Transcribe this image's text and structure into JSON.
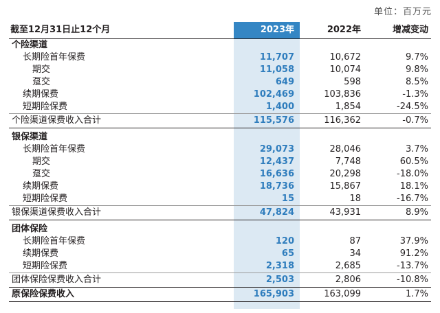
{
  "unit_label": "单位：百万元",
  "header": {
    "label": "截至12月31日止12个月",
    "y2023": "2023年",
    "y2022": "2022年",
    "change": "增减变动"
  },
  "rows": [
    {
      "type": "section",
      "label": "个险渠道"
    },
    {
      "type": "item",
      "label": "长期险首年保费",
      "v2023": "11,707",
      "v2022": "10,672",
      "change": "9.7%"
    },
    {
      "type": "sub",
      "label": "期交",
      "v2023": "11,058",
      "v2022": "10,074",
      "change": "9.8%"
    },
    {
      "type": "sub",
      "label": "趸交",
      "v2023": "649",
      "v2022": "598",
      "change": "8.5%"
    },
    {
      "type": "item",
      "label": "续期保费",
      "v2023": "102,469",
      "v2022": "103,836",
      "change": "-1.3%"
    },
    {
      "type": "item",
      "label": "短期险保费",
      "v2023": "1,400",
      "v2022": "1,854",
      "change": "-24.5%"
    },
    {
      "type": "total",
      "label": "个险渠道保费收入合计",
      "v2023": "115,576",
      "v2022": "116,362",
      "change": "-0.7%"
    },
    {
      "type": "section",
      "label": "银保渠道"
    },
    {
      "type": "item",
      "label": "长期险首年保费",
      "v2023": "29,073",
      "v2022": "28,046",
      "change": "3.7%"
    },
    {
      "type": "sub",
      "label": "期交",
      "v2023": "12,437",
      "v2022": "7,748",
      "change": "60.5%"
    },
    {
      "type": "sub",
      "label": "趸交",
      "v2023": "16,636",
      "v2022": "20,298",
      "change": "-18.0%"
    },
    {
      "type": "item",
      "label": "续期保费",
      "v2023": "18,736",
      "v2022": "15,867",
      "change": "18.1%"
    },
    {
      "type": "item",
      "label": "短期险保费",
      "v2023": "15",
      "v2022": "18",
      "change": "-16.7%"
    },
    {
      "type": "total",
      "label": "银保渠道保费收入合计",
      "v2023": "47,824",
      "v2022": "43,931",
      "change": "8.9%"
    },
    {
      "type": "section",
      "label": "团体保险"
    },
    {
      "type": "item",
      "label": "长期险首年保费",
      "v2023": "120",
      "v2022": "87",
      "change": "37.9%"
    },
    {
      "type": "item",
      "label": "续期保费",
      "v2023": "65",
      "v2022": "34",
      "change": "91.2%"
    },
    {
      "type": "item",
      "label": "短期险保费",
      "v2023": "2,318",
      "v2022": "2,685",
      "change": "-13.7%"
    },
    {
      "type": "total",
      "label": "团体保险保费收入合计",
      "v2023": "2,503",
      "v2022": "2,806",
      "change": "-10.8%"
    },
    {
      "type": "grand",
      "label": "原保险保费收入",
      "v2023": "165,903",
      "v2022": "163,099",
      "change": "1.7%"
    }
  ],
  "colors": {
    "highlight_header": "#3486c4",
    "highlight_column": "#dce9f3",
    "value_2023": "#2f7dbd"
  }
}
